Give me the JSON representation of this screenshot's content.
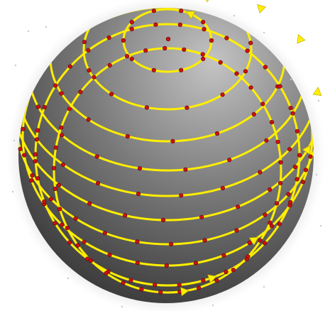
{
  "scene": {
    "subject": "sphere",
    "background_color": "#ffffff",
    "sphere_highlight_color": "#c4c4c4",
    "sphere_mid_color": "#7a7a7a",
    "sphere_shadow_color": "#2a2a2a",
    "rim_glow_color": "#eeeeee",
    "spiral_color": "#ffee00",
    "arrow_color": "#ffee00",
    "point_color": "#cc1111",
    "pole_point": true,
    "ring_count": 10,
    "direction_arrows": 9
  }
}
